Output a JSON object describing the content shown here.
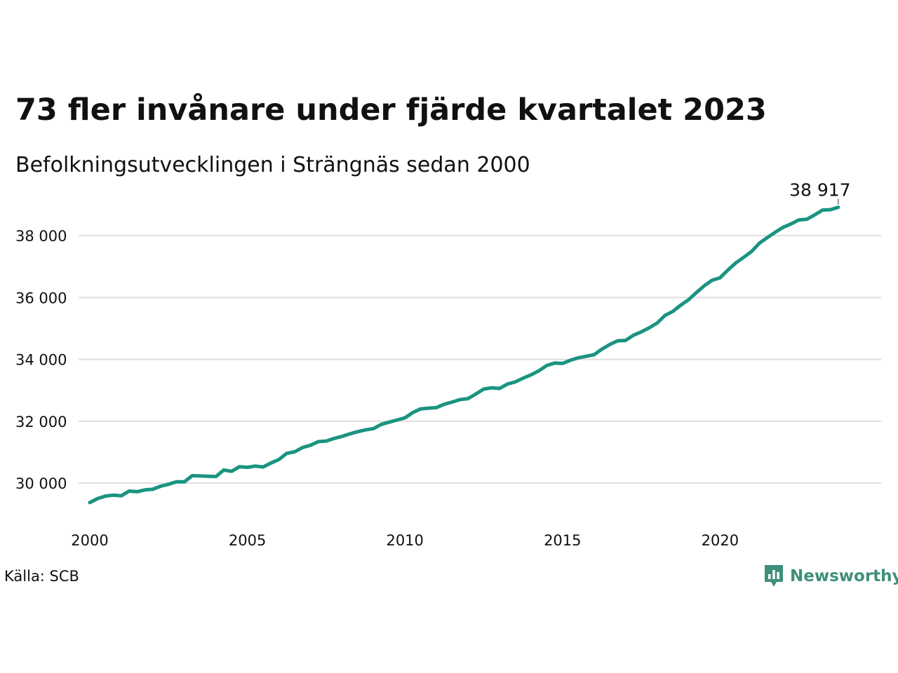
{
  "header": {
    "title": "73 fler invånare under fjärde kvartalet 2023",
    "subtitle": "Befolkningsutvecklingen i Strängnäs sedan 2000"
  },
  "footer": {
    "source": "Källa: SCB",
    "brand": "Newsworthy",
    "brand_color": "#3f8f7a",
    "brand_icon": "newsworthy-logo-icon"
  },
  "chart_data": {
    "type": "line",
    "title": "73 fler invånare under fjärde kvartalet 2023",
    "subtitle": "Befolkningsutvecklingen i Strängnäs sedan 2000",
    "xlabel": "",
    "ylabel": "",
    "x_ticks": [
      2000,
      2005,
      2010,
      2015,
      2020
    ],
    "y_ticks": [
      30000,
      32000,
      34000,
      36000,
      38000
    ],
    "y_tick_labels": [
      "30 000",
      "32 000",
      "34 000",
      "36 000",
      "38 000"
    ],
    "xlim": [
      2000,
      2024.8
    ],
    "ylim": [
      28800,
      39500
    ],
    "grid": "horizontal",
    "line_color": "#1a9480",
    "grid_color": "#dedede",
    "end_label": "38 917",
    "series": [
      {
        "x": [
          2000.0,
          2000.25,
          2000.5,
          2000.75,
          2001.0,
          2001.25,
          2001.5,
          2001.75,
          2002.0,
          2002.25,
          2002.5,
          2002.75,
          2003.0,
          2003.25,
          2003.5,
          2003.75,
          2004.0,
          2004.25,
          2004.5,
          2004.75,
          2005.0,
          2005.25,
          2005.5,
          2005.75,
          2006.0,
          2006.25,
          2006.5,
          2006.75,
          2007.0,
          2007.25,
          2007.5,
          2007.75,
          2008.0,
          2008.25,
          2008.5,
          2008.75,
          2009.0,
          2009.25,
          2009.5,
          2009.75,
          2010.0,
          2010.25,
          2010.5,
          2010.75,
          2011.0,
          2011.25,
          2011.5,
          2011.75,
          2012.0,
          2012.25,
          2012.5,
          2012.75,
          2013.0,
          2013.25,
          2013.5,
          2013.75,
          2014.0,
          2014.25,
          2014.5,
          2014.75,
          2015.0,
          2015.25,
          2015.5,
          2015.75,
          2016.0,
          2016.25,
          2016.5,
          2016.75,
          2017.0,
          2017.25,
          2017.5,
          2017.75,
          2018.0,
          2018.25,
          2018.5,
          2018.75,
          2019.0,
          2019.25,
          2019.5,
          2019.75,
          2020.0,
          2020.25,
          2020.5,
          2020.75,
          2021.0,
          2021.25,
          2021.5,
          2021.75,
          2022.0,
          2022.25,
          2022.5,
          2022.75,
          2023.0,
          2023.25,
          2023.5,
          2023.75
        ],
        "values": [
          29370,
          29500,
          29580,
          29610,
          29590,
          29740,
          29720,
          29780,
          29800,
          29900,
          29960,
          30040,
          30040,
          30240,
          30230,
          30220,
          30210,
          30420,
          30380,
          30530,
          30510,
          30550,
          30520,
          30650,
          30760,
          30960,
          31010,
          31150,
          31220,
          31340,
          31360,
          31440,
          31510,
          31590,
          31660,
          31720,
          31760,
          31900,
          31970,
          32040,
          32110,
          32280,
          32400,
          32420,
          32440,
          32550,
          32620,
          32700,
          32730,
          32880,
          33040,
          33080,
          33060,
          33200,
          33270,
          33390,
          33500,
          33630,
          33800,
          33880,
          33870,
          33970,
          34050,
          34100,
          34150,
          34330,
          34480,
          34600,
          34610,
          34780,
          34890,
          35020,
          35170,
          35420,
          35550,
          35750,
          35930,
          36160,
          36380,
          36560,
          36640,
          36890,
          37120,
          37300,
          37490,
          37760,
          37940,
          38110,
          38270,
          38380,
          38510,
          38530,
          38670,
          38830,
          38840,
          38917
        ]
      }
    ]
  }
}
